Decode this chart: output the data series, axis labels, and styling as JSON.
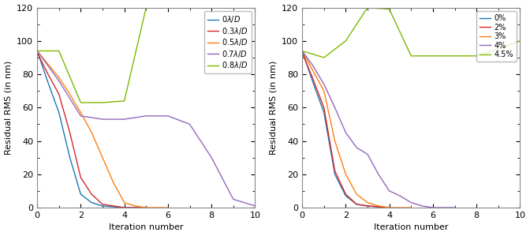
{
  "left": {
    "xlabel": "Iteration number",
    "ylabel": "Residual RMS (in nm)",
    "xlim": [
      0,
      10
    ],
    "ylim": [
      0,
      120
    ],
    "yticks": [
      0,
      20,
      40,
      60,
      80,
      100,
      120
    ],
    "xticks": [
      0,
      2,
      4,
      6,
      8,
      10
    ],
    "legend_labels": [
      "$0\\lambda/D$",
      "$0.3\\lambda/D$",
      "$0.5\\lambda/D$",
      "$0.7\\lambda/D$",
      "$0.8\\lambda/D$"
    ],
    "colors": [
      "#1f77b4",
      "#d62728",
      "#ff7f0e",
      "#9467bd",
      "#7db800"
    ],
    "series": [
      {
        "x": [
          0,
          0.5,
          1,
          1.5,
          2,
          2.5,
          3,
          4,
          5
        ],
        "y": [
          94,
          75,
          57,
          30,
          8,
          3,
          1,
          0,
          0
        ]
      },
      {
        "x": [
          0,
          0.5,
          1,
          1.5,
          2,
          2.5,
          3,
          3.5,
          4,
          5
        ],
        "y": [
          93,
          80,
          68,
          45,
          18,
          8,
          2,
          1,
          0,
          0
        ]
      },
      {
        "x": [
          0,
          0.5,
          1,
          1.5,
          2,
          2.5,
          3,
          3.5,
          4,
          4.5,
          5,
          6
        ],
        "y": [
          94,
          86,
          78,
          68,
          57,
          45,
          30,
          15,
          3,
          1,
          0,
          0
        ]
      },
      {
        "x": [
          0,
          1,
          2,
          3,
          4,
          5,
          6,
          7,
          8,
          9,
          10
        ],
        "y": [
          94,
          76,
          55,
          53,
          53,
          55,
          55,
          50,
          30,
          5,
          1
        ]
      },
      {
        "x": [
          0,
          1,
          2,
          3,
          4,
          5
        ],
        "y": [
          94,
          94,
          63,
          63,
          64,
          120
        ]
      }
    ]
  },
  "right": {
    "xlabel": "Iteration number",
    "ylabel": "Residual RMS (in nm)",
    "xlim": [
      0,
      10
    ],
    "ylim": [
      0,
      120
    ],
    "yticks": [
      0,
      20,
      40,
      60,
      80,
      100,
      120
    ],
    "xticks": [
      0,
      2,
      4,
      6,
      8,
      10
    ],
    "legend_labels": [
      "0%",
      "2%",
      "3%",
      "4%",
      "4.5%"
    ],
    "colors": [
      "#1f77b4",
      "#d62728",
      "#ff7f0e",
      "#9467bd",
      "#7db800"
    ],
    "series": [
      {
        "x": [
          0,
          0.5,
          1,
          1.5,
          2,
          2.5,
          3,
          4
        ],
        "y": [
          94,
          75,
          57,
          20,
          7,
          2,
          1,
          0
        ]
      },
      {
        "x": [
          0,
          0.5,
          1,
          1.5,
          2,
          2.5,
          3,
          4
        ],
        "y": [
          93,
          77,
          60,
          22,
          8,
          2,
          1,
          0
        ]
      },
      {
        "x": [
          0,
          0.5,
          1,
          1.5,
          2,
          2.5,
          3,
          3.5,
          4,
          5
        ],
        "y": [
          94,
          82,
          70,
          40,
          20,
          8,
          3,
          1,
          0,
          0
        ]
      },
      {
        "x": [
          0,
          0.5,
          1,
          1.5,
          2,
          2.5,
          3,
          3.5,
          4,
          4.5,
          5,
          5.5,
          6,
          7
        ],
        "y": [
          94,
          85,
          74,
          60,
          45,
          36,
          32,
          20,
          10,
          7,
          3,
          1,
          0,
          0
        ]
      },
      {
        "x": [
          0,
          1,
          2,
          3,
          4,
          5,
          6,
          7,
          8,
          9,
          10
        ],
        "y": [
          94,
          90,
          100,
          120,
          119,
          91,
          91,
          91,
          91,
          95,
          100
        ]
      }
    ]
  }
}
